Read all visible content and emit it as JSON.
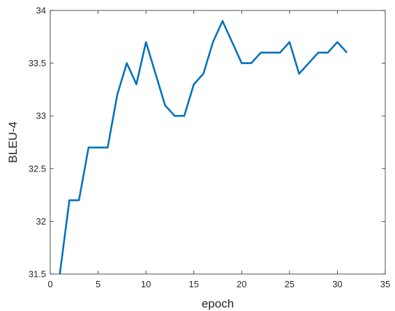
{
  "chart_data": {
    "type": "line",
    "xlabel": "epoch",
    "ylabel": "BLEU-4",
    "xlim": [
      0,
      35
    ],
    "ylim": [
      31.5,
      34
    ],
    "x_ticks": [
      0,
      5,
      10,
      15,
      20,
      25,
      30,
      35
    ],
    "y_ticks": [
      31.5,
      32,
      32.5,
      33,
      33.5,
      34
    ],
    "x_tick_labels": [
      "0",
      "5",
      "10",
      "15",
      "20",
      "25",
      "30",
      "35"
    ],
    "y_tick_labels": [
      "31.5",
      "32",
      "32.5",
      "33",
      "33.5",
      "34"
    ],
    "grid": false,
    "box": true,
    "series": [
      {
        "color": "#0072BD",
        "x": [
          1,
          2,
          3,
          4,
          5,
          6,
          7,
          8,
          9,
          10,
          11,
          12,
          13,
          14,
          15,
          16,
          17,
          18,
          19,
          20,
          21,
          22,
          23,
          24,
          25,
          26,
          27,
          28,
          29,
          30,
          31
        ],
        "y": [
          31.5,
          32.2,
          32.2,
          32.7,
          32.7,
          32.7,
          33.2,
          33.5,
          33.3,
          33.7,
          33.4,
          33.1,
          33.0,
          33.0,
          33.3,
          33.4,
          33.7,
          33.9,
          33.7,
          33.5,
          33.5,
          33.6,
          33.6,
          33.6,
          33.7,
          33.4,
          33.5,
          33.6,
          33.6,
          33.7,
          33.6
        ]
      }
    ]
  }
}
